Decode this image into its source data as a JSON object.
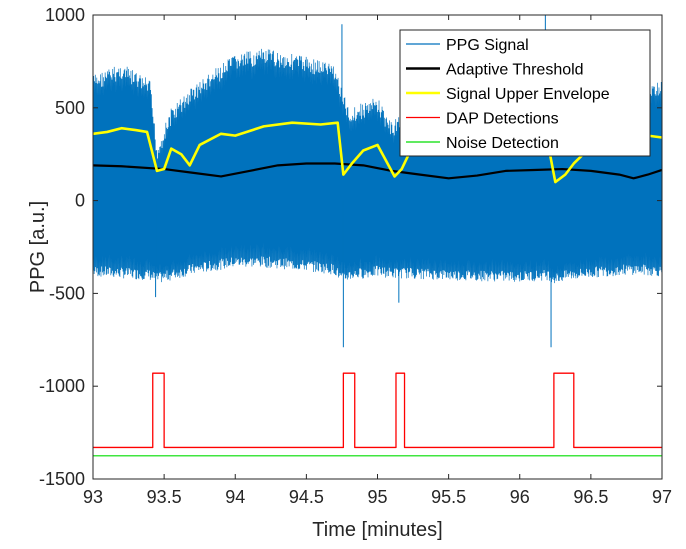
{
  "chart_data": {
    "type": "line",
    "title": "",
    "xlabel": "Time [minutes]",
    "ylabel": "PPG [a.u.]",
    "xlim": [
      93,
      97
    ],
    "ylim": [
      -1500,
      1000
    ],
    "xticks": [
      "93",
      "93.5",
      "94",
      "94.5",
      "95",
      "95.5",
      "96",
      "96.5",
      "97"
    ],
    "yticks": [
      "-1500",
      "-1000",
      "-500",
      "0",
      "500",
      "1000"
    ],
    "grid": false,
    "legend_position": "top-right",
    "series": [
      {
        "name": "PPG Signal",
        "color": "#0072BD",
        "style": "dense oscillating signal",
        "envelope_x": [
          93.0,
          93.2,
          93.4,
          93.45,
          93.55,
          93.7,
          94.0,
          94.2,
          94.5,
          94.7,
          94.75,
          94.8,
          95.0,
          95.1,
          95.2,
          95.5,
          96.0,
          96.2,
          96.25,
          96.35,
          96.6,
          96.8,
          97.0
        ],
        "upper": [
          680,
          740,
          650,
          300,
          500,
          620,
          790,
          820,
          780,
          740,
          600,
          500,
          560,
          420,
          520,
          580,
          640,
          600,
          300,
          540,
          620,
          660,
          640
        ],
        "lower": [
          -410,
          -420,
          -430,
          -450,
          -430,
          -400,
          -360,
          -360,
          -380,
          -400,
          -450,
          -430,
          -410,
          -420,
          -420,
          -430,
          -440,
          -430,
          -450,
          -430,
          -410,
          -400,
          -410
        ],
        "spikes": [
          {
            "x": 93.44,
            "y": -520
          },
          {
            "x": 94.75,
            "y": 950
          },
          {
            "x": 94.76,
            "y": -790
          },
          {
            "x": 95.15,
            "y": -550
          },
          {
            "x": 96.18,
            "y": 1000
          },
          {
            "x": 96.22,
            "y": -790
          }
        ]
      },
      {
        "name": "Adaptive Threshold",
        "color": "#000000",
        "x": [
          93.0,
          93.2,
          93.5,
          93.7,
          93.9,
          94.1,
          94.3,
          94.5,
          94.7,
          94.9,
          95.1,
          95.3,
          95.5,
          95.7,
          95.9,
          96.1,
          96.3,
          96.5,
          96.7,
          96.8,
          96.9,
          97.0
        ],
        "y": [
          190,
          185,
          170,
          150,
          130,
          160,
          190,
          200,
          200,
          190,
          160,
          140,
          120,
          135,
          160,
          165,
          170,
          160,
          140,
          120,
          140,
          165
        ]
      },
      {
        "name": "Signal Upper Envelope",
        "color": "#FFFF00",
        "x": [
          93.0,
          93.1,
          93.2,
          93.3,
          93.38,
          93.45,
          93.5,
          93.55,
          93.62,
          93.68,
          93.75,
          93.9,
          94.0,
          94.2,
          94.4,
          94.6,
          94.72,
          94.76,
          94.82,
          94.9,
          95.0,
          95.12,
          95.17,
          95.22,
          95.35,
          95.6,
          95.9,
          96.1,
          96.2,
          96.25,
          96.32,
          96.38,
          96.5,
          96.7,
          96.9,
          97.0
        ],
        "y": [
          360,
          370,
          390,
          380,
          370,
          160,
          170,
          280,
          250,
          190,
          300,
          360,
          350,
          400,
          420,
          410,
          420,
          140,
          200,
          270,
          300,
          130,
          170,
          250,
          290,
          300,
          310,
          320,
          300,
          100,
          140,
          200,
          290,
          330,
          350,
          340
        ]
      },
      {
        "name": "DAP Detections",
        "color": "#FF0000",
        "x": [
          93.0,
          93.42,
          93.42,
          93.5,
          93.5,
          94.76,
          94.76,
          94.84,
          94.84,
          95.13,
          95.13,
          95.19,
          95.19,
          96.24,
          96.24,
          96.38,
          96.38,
          97.0
        ],
        "y": [
          -1330,
          -1330,
          -930,
          -930,
          -1330,
          -1330,
          -930,
          -930,
          -1330,
          -1330,
          -930,
          -930,
          -1330,
          -1330,
          -930,
          -930,
          -1330,
          -1330
        ]
      },
      {
        "name": "Noise Detection",
        "color": "#00DD00",
        "x": [
          93.0,
          97.0
        ],
        "y": [
          -1375,
          -1375
        ]
      }
    ]
  }
}
